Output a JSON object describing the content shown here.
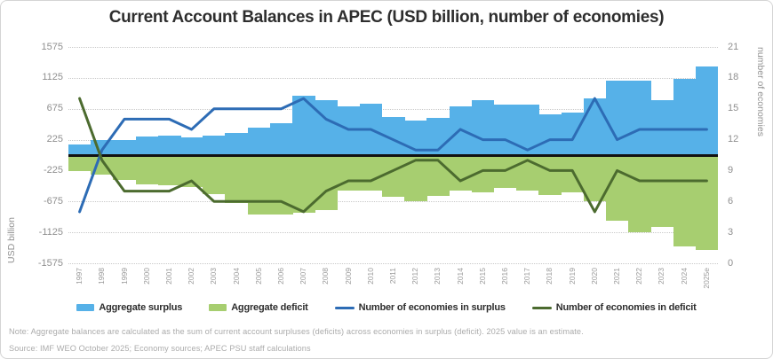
{
  "title": "Current Account Balances in APEC (USD billion, number of economies)",
  "note": "Note: Aggregate balances are calculated as the sum of current account surpluses (deficits) across economies in surplus (deficit). 2025 value is an estimate.",
  "source": "Source: IMF WEO October 2025; Economy sources; APEC PSU staff calculations",
  "chart_data": {
    "type": "bar",
    "subtype": "combo-bar-line-dual-axis",
    "title": "Current Account Balances in APEC (USD billion, number of economies)",
    "categories": [
      "1997",
      "1998",
      "1999",
      "2000",
      "2001",
      "2002",
      "2003",
      "2004",
      "2005",
      "2006",
      "2007",
      "2008",
      "2009",
      "2010",
      "2011",
      "2012",
      "2013",
      "2014",
      "2015",
      "2016",
      "2017",
      "2018",
      "2019",
      "2020",
      "2021",
      "2022",
      "2023",
      "2024",
      "2025e"
    ],
    "y_left": {
      "label": "USD billion",
      "ticks": [
        1575,
        1125,
        675,
        225,
        -225,
        -675,
        -1125,
        -1575
      ],
      "min": -1575,
      "max": 1575
    },
    "y_right": {
      "label": "number of economies",
      "ticks": [
        21,
        18,
        15,
        12,
        9,
        6,
        3,
        0
      ],
      "min": 0,
      "max": 21
    },
    "grid": "dotted-horizontal",
    "zero_line_color": "#111111",
    "legend_position": "bottom",
    "series": [
      {
        "name": "Aggregate surplus",
        "type": "bar",
        "axis": "left",
        "color": "#56b1e8",
        "values": [
          150,
          220,
          220,
          270,
          285,
          255,
          280,
          320,
          405,
          465,
          860,
          805,
          715,
          755,
          560,
          505,
          545,
          705,
          805,
          735,
          730,
          590,
          625,
          825,
          1080,
          1080,
          795,
          1110,
          1290
        ]
      },
      {
        "name": "Aggregate deficit",
        "type": "bar",
        "axis": "left",
        "color": "#a7ce70",
        "values": [
          -230,
          -285,
          -365,
          -430,
          -440,
          -470,
          -565,
          -700,
          -860,
          -865,
          -835,
          -795,
          -520,
          -520,
          -610,
          -665,
          -595,
          -520,
          -545,
          -480,
          -510,
          -575,
          -545,
          -670,
          -960,
          -1125,
          -1040,
          -1335,
          -1380
        ]
      },
      {
        "name": "Number of economies in surplus",
        "type": "line",
        "axis": "right",
        "color": "#2d6cb5",
        "values": [
          5,
          11,
          14,
          14,
          14,
          13,
          15,
          15,
          15,
          15,
          16,
          14,
          13,
          13,
          12,
          11,
          11,
          13,
          12,
          12,
          11,
          12,
          12,
          16,
          12,
          13,
          13,
          13,
          13
        ]
      },
      {
        "name": "Number of economies in deficit",
        "type": "line",
        "axis": "right",
        "color": "#4c6b2f",
        "values": [
          16,
          10,
          7,
          7,
          7,
          8,
          6,
          6,
          6,
          6,
          5,
          7,
          8,
          8,
          9,
          10,
          10,
          8,
          9,
          9,
          10,
          9,
          9,
          5,
          9,
          8,
          8,
          8,
          8
        ]
      }
    ]
  }
}
